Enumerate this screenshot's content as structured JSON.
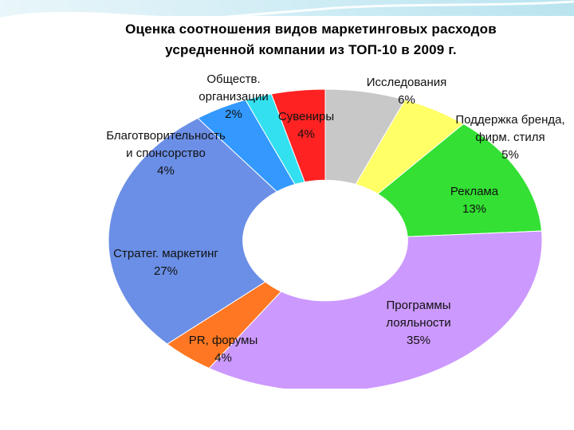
{
  "slide": {
    "accent_color": "#2ba3c4"
  },
  "chart_data": {
    "type": "pie",
    "donut": true,
    "title_lines": [
      "Оценка соотношения видов маркетинговых расходов",
      "усредненной компании из ТОП-10 в 2009 г."
    ],
    "slices": [
      {
        "label_lines": [
          "Исследования",
          "6%"
        ],
        "value": 6,
        "color": "#c8c8c8"
      },
      {
        "label_lines": [
          "Поддержка бренда,",
          "фирм. стиля",
          "5%"
        ],
        "value": 5,
        "color": "#ffff66"
      },
      {
        "label_lines": [
          "Реклама",
          "13%"
        ],
        "value": 13,
        "color": "#33e033"
      },
      {
        "label_lines": [
          "Программы",
          "лояльности",
          "35%"
        ],
        "value": 35,
        "color": "#cc99ff"
      },
      {
        "label_lines": [
          "PR, форумы",
          "4%"
        ],
        "value": 4,
        "color": "#ff7722"
      },
      {
        "label_lines": [
          "Стратег. маркетинг",
          "27%"
        ],
        "value": 27,
        "color": "#6b8fe6"
      },
      {
        "label_lines": [
          "Благотворительность",
          "и спонсорство",
          "4%"
        ],
        "value": 4,
        "color": "#3399ff"
      },
      {
        "label_lines": [
          "Обществ.",
          "организации",
          "2%"
        ],
        "value": 2,
        "color": "#33e0f0"
      },
      {
        "label_lines": [
          "Сувениры",
          "4%"
        ],
        "value": 4,
        "color": "#ff2222"
      }
    ]
  }
}
